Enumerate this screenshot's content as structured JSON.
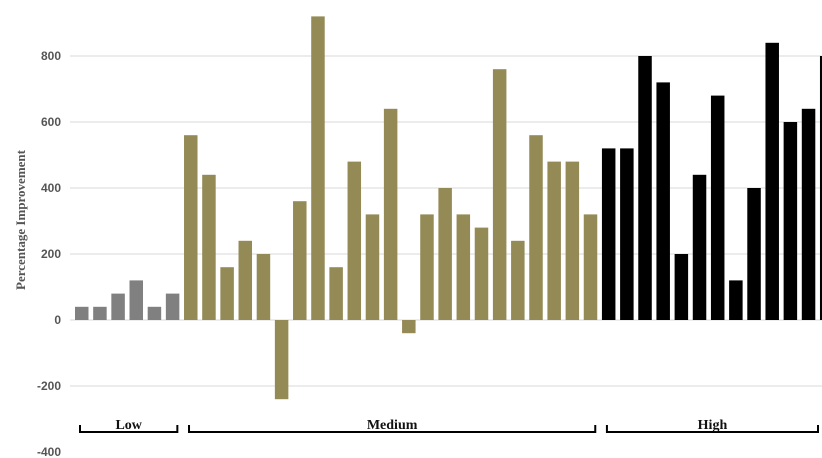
{
  "chart_data": {
    "type": "bar",
    "title": "",
    "xlabel": "",
    "ylabel": "Percentage Improvement",
    "ylim": [
      -400,
      900
    ],
    "yticks": [
      -400,
      -200,
      0,
      200,
      400,
      600,
      800
    ],
    "grid": true,
    "groups": [
      {
        "name": "Low",
        "color": "#808080",
        "values": [
          40,
          40,
          80,
          120,
          40,
          80
        ]
      },
      {
        "name": "Medium",
        "color": "#948a56",
        "values": [
          560,
          440,
          160,
          240,
          200,
          -240,
          360,
          920,
          160,
          480,
          320,
          640,
          -40,
          320,
          400,
          320,
          280,
          760,
          240,
          560,
          480,
          480,
          320
        ]
      },
      {
        "name": "High",
        "color": "#000000",
        "values": [
          520,
          520,
          800,
          720,
          200,
          440,
          680,
          120,
          400,
          840,
          600,
          640,
          800
        ]
      }
    ]
  }
}
